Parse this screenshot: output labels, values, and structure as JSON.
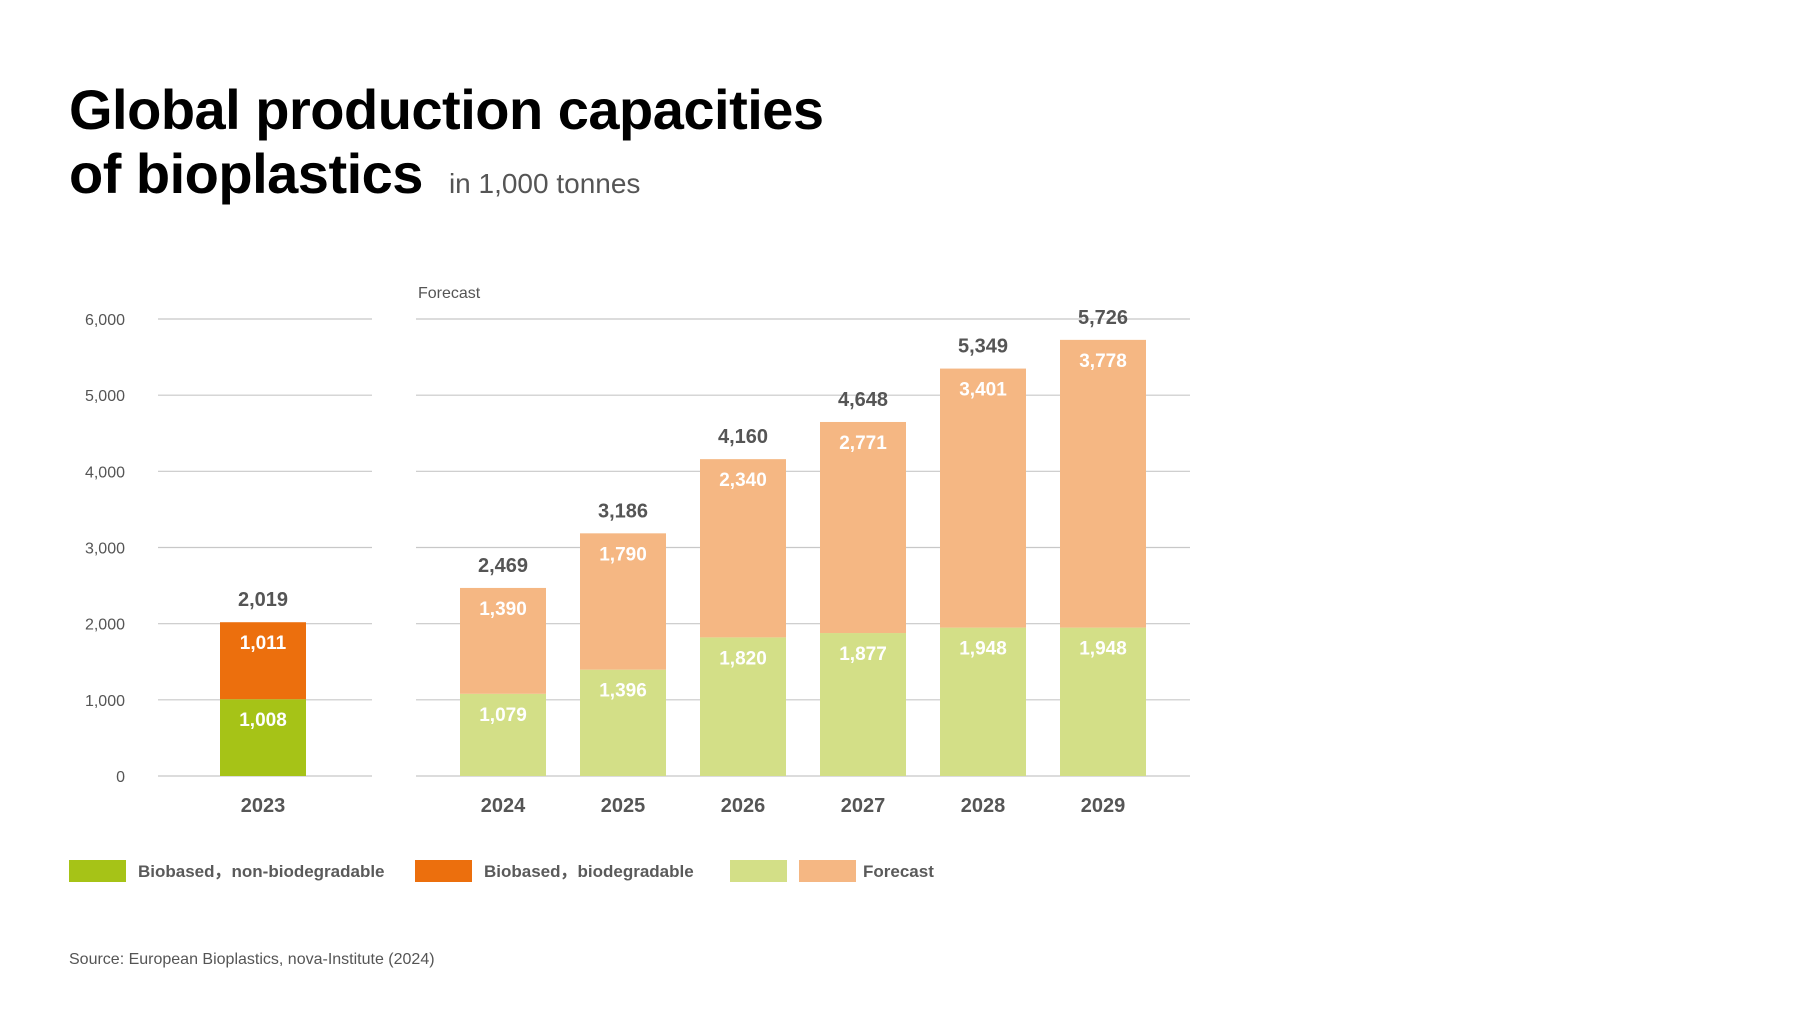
{
  "title": {
    "line1": "Global production capacities",
    "line2": "of bioplastics",
    "unit": "in 1,000 tonnes"
  },
  "source": "Source: European Bioplastics, nova-Institute (2024)",
  "forecast_label": "Forecast",
  "legend": [
    {
      "label": "Biobased，non-biodegradable",
      "color": "#a6c317"
    },
    {
      "label": "Biobased，biodegradable",
      "color": "#ec6f0d"
    },
    {
      "label": "Forecast",
      "colors": [
        "#d3df87",
        "#f5b783"
      ]
    }
  ],
  "colors": {
    "non_biodegradable": "#a6c317",
    "biodegradable": "#ec6f0d",
    "forecast_light_green": "#d3df87",
    "forecast_light_orange": "#f5b783",
    "grid": "#c8c8c8",
    "axis_text": "#555555",
    "total_text": "#555555"
  },
  "chart_data": {
    "type": "bar",
    "stacked": true,
    "title": "Global production capacities of bioplastics",
    "subtitle": "in 1,000 tonnes",
    "ylim": [
      0,
      6000
    ],
    "yticks": [
      0,
      1000,
      2000,
      3000,
      4000,
      5000,
      6000
    ],
    "ytick_labels": [
      "0",
      "1,000",
      "2,000",
      "3,000",
      "4,000",
      "5,000",
      "6,000"
    ],
    "categories": [
      "2023",
      "2024",
      "2025",
      "2026",
      "2027",
      "2028",
      "2029"
    ],
    "series": [
      {
        "name": "Biobased，non-biodegradable",
        "values": [
          1008,
          1079,
          1396,
          1820,
          1877,
          1948,
          1948
        ],
        "labels": [
          "1,008",
          "1,079",
          "1,396",
          "1,820",
          "1,877",
          "1,948",
          "1,948"
        ]
      },
      {
        "name": "Biobased，biodegradable",
        "values": [
          1011,
          1390,
          1790,
          2340,
          2771,
          3401,
          3778
        ],
        "labels": [
          "1,011",
          "1,390",
          "1,790",
          "2,340",
          "2,771",
          "3,401",
          "3,778"
        ]
      }
    ],
    "totals": [
      2019,
      2469,
      3186,
      4160,
      4648,
      5349,
      5726
    ],
    "total_labels": [
      "2,019",
      "2,469",
      "3,186",
      "4,160",
      "4,648",
      "5,349",
      "5,726"
    ],
    "forecast": [
      false,
      true,
      true,
      true,
      true,
      true,
      true
    ],
    "annotations": [
      "Forecast"
    ],
    "grid": true,
    "legend_position": "bottom"
  }
}
